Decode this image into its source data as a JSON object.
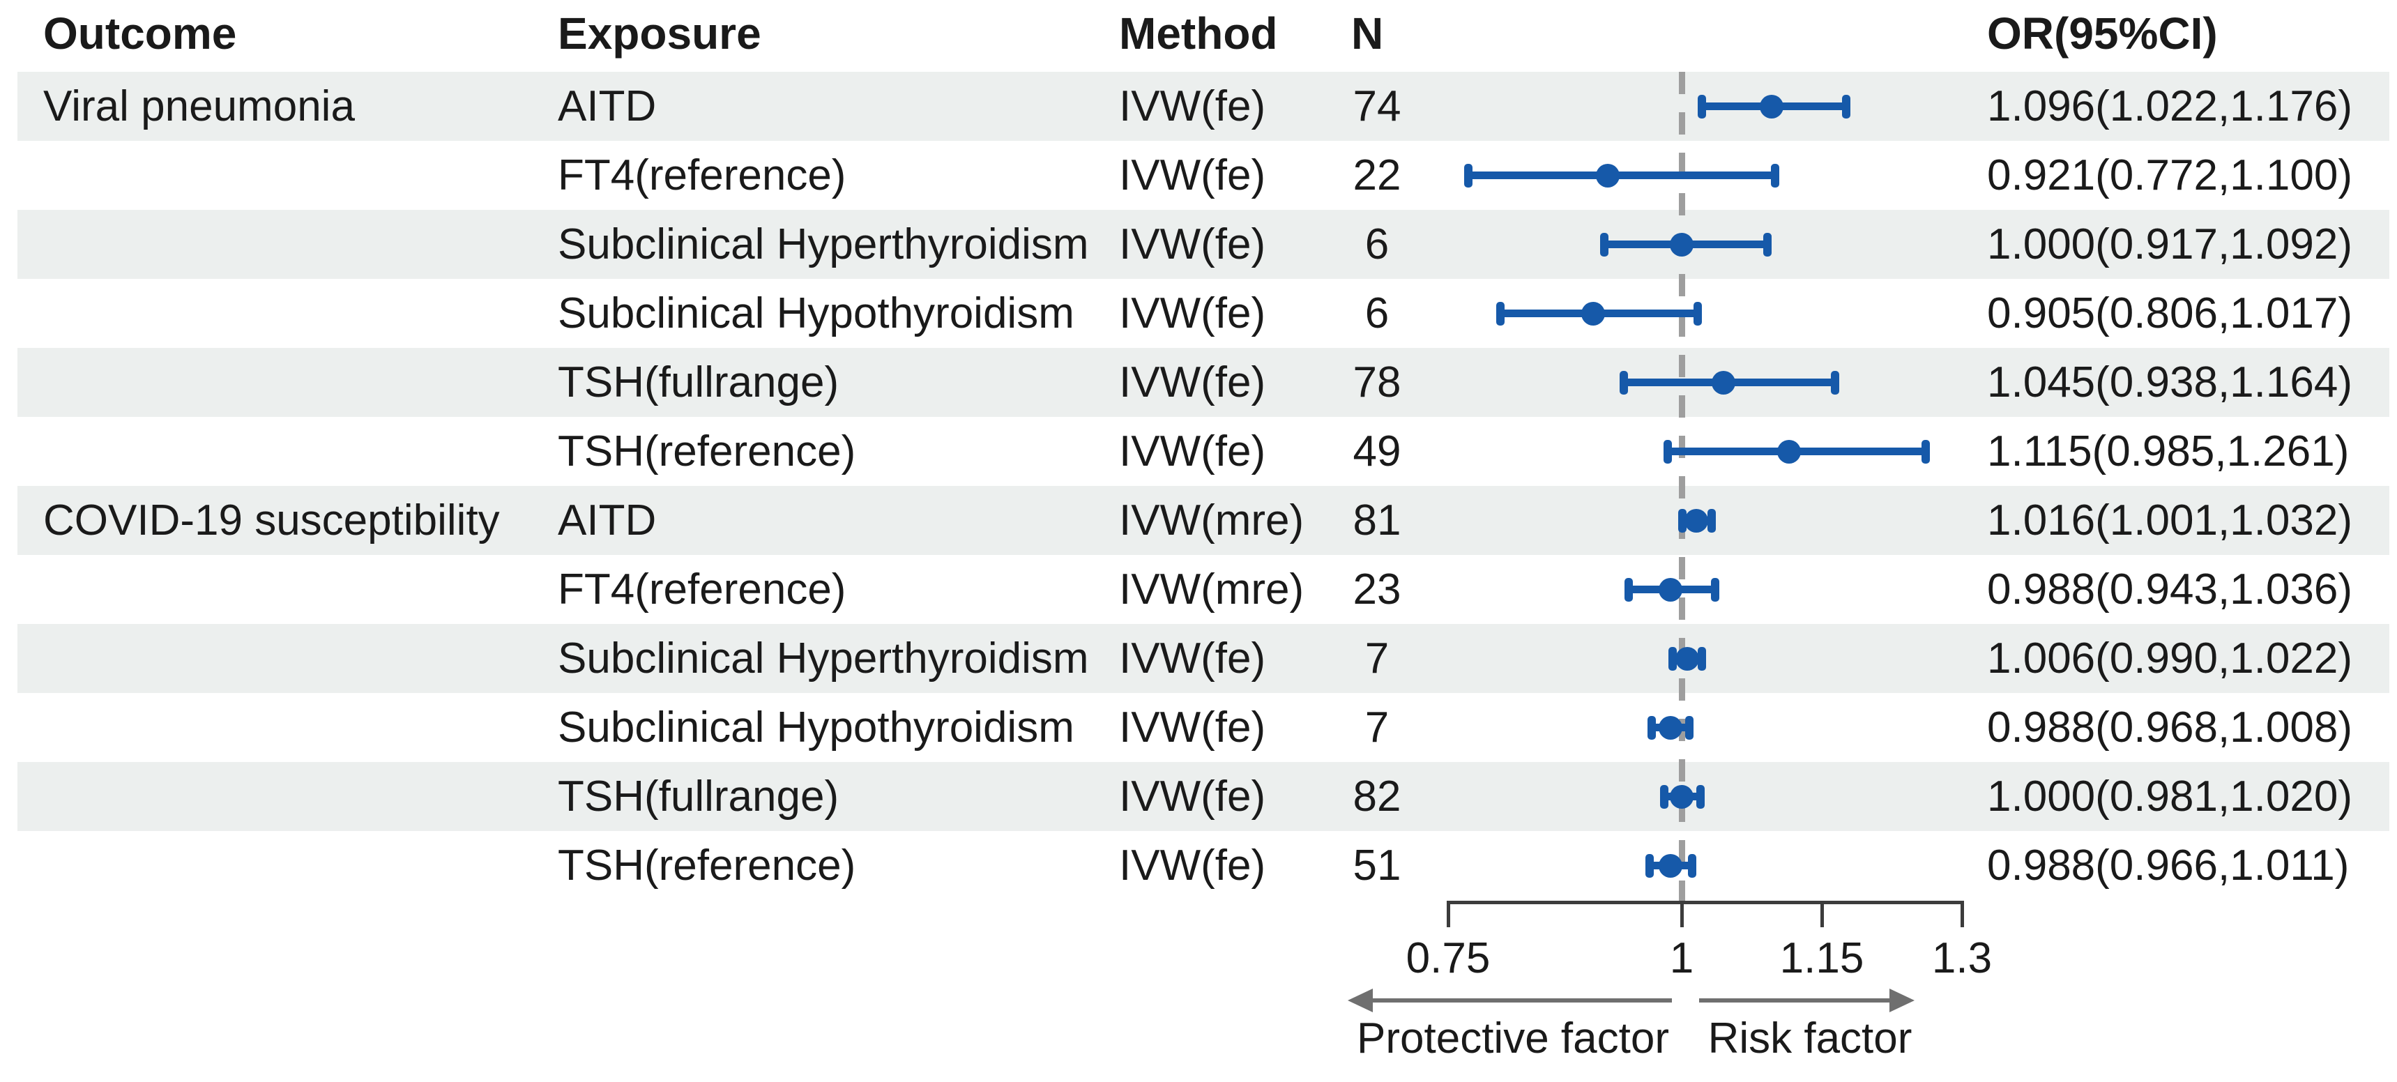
{
  "figure": {
    "columns": {
      "outcome": "Outcome",
      "exposure": "Exposure",
      "method": "Method",
      "n": "N",
      "or_ci": "OR(95%CI)"
    }
  },
  "chart_data": {
    "type": "forest",
    "title": "",
    "xlabel": "",
    "xlim": [
      0.75,
      1.3
    ],
    "reference_value": 1,
    "x_axis": {
      "ticks": [
        0.75,
        1,
        1.15,
        1.3
      ],
      "tick_labels": [
        "0.75",
        "1",
        "1.15",
        "1.3"
      ]
    },
    "arrow_labels": {
      "left": "Protective factor",
      "right": "Risk factor"
    },
    "rows": [
      {
        "outcome": "Viral pneumonia",
        "exposure": "AITD",
        "method": "IVW(fe)",
        "n": "74",
        "or": 1.096,
        "ci_low": 1.022,
        "ci_high": 1.176,
        "label": "1.096(1.022,1.176)"
      },
      {
        "outcome": "",
        "exposure": "FT4(reference)",
        "method": "IVW(fe)",
        "n": "22",
        "or": 0.921,
        "ci_low": 0.772,
        "ci_high": 1.1,
        "label": "0.921(0.772,1.100)"
      },
      {
        "outcome": "",
        "exposure": "Subclinical Hyperthyroidism",
        "method": "IVW(fe)",
        "n": "6",
        "or": 1.0,
        "ci_low": 0.917,
        "ci_high": 1.092,
        "label": "1.000(0.917,1.092)"
      },
      {
        "outcome": "",
        "exposure": "Subclinical Hypothyroidism",
        "method": "IVW(fe)",
        "n": "6",
        "or": 0.905,
        "ci_low": 0.806,
        "ci_high": 1.017,
        "label": "0.905(0.806,1.017)"
      },
      {
        "outcome": "",
        "exposure": "TSH(fullrange)",
        "method": "IVW(fe)",
        "n": "78",
        "or": 1.045,
        "ci_low": 0.938,
        "ci_high": 1.164,
        "label": "1.045(0.938,1.164)"
      },
      {
        "outcome": "",
        "exposure": "TSH(reference)",
        "method": "IVW(fe)",
        "n": "49",
        "or": 1.115,
        "ci_low": 0.985,
        "ci_high": 1.261,
        "label": "1.115(0.985,1.261)"
      },
      {
        "outcome": "COVID-19 susceptibility",
        "exposure": "AITD",
        "method": "IVW(mre)",
        "n": "81",
        "or": 1.016,
        "ci_low": 1.001,
        "ci_high": 1.032,
        "label": "1.016(1.001,1.032)"
      },
      {
        "outcome": "",
        "exposure": "FT4(reference)",
        "method": "IVW(mre)",
        "n": "23",
        "or": 0.988,
        "ci_low": 0.943,
        "ci_high": 1.036,
        "label": "0.988(0.943,1.036)"
      },
      {
        "outcome": "",
        "exposure": "Subclinical Hyperthyroidism",
        "method": "IVW(fe)",
        "n": "7",
        "or": 1.006,
        "ci_low": 0.99,
        "ci_high": 1.022,
        "label": "1.006(0.990,1.022)"
      },
      {
        "outcome": "",
        "exposure": "Subclinical Hypothyroidism",
        "method": "IVW(fe)",
        "n": "7",
        "or": 0.988,
        "ci_low": 0.968,
        "ci_high": 1.008,
        "label": "0.988(0.968,1.008)"
      },
      {
        "outcome": "",
        "exposure": "TSH(fullrange)",
        "method": "IVW(fe)",
        "n": "82",
        "or": 1.0,
        "ci_low": 0.981,
        "ci_high": 1.02,
        "label": "1.000(0.981,1.020)"
      },
      {
        "outcome": "",
        "exposure": "TSH(reference)",
        "method": "IVW(fe)",
        "n": "51",
        "or": 0.988,
        "ci_low": 0.966,
        "ci_high": 1.011,
        "label": "0.988(0.966,1.011)"
      }
    ],
    "colors": {
      "marker_blue": "#1659A9",
      "reference_line_grey": "#9E9E9E",
      "row_shade": "#ECEFEE",
      "axis_line": "#3C3C3C",
      "arrow_grey": "#6F6F6F",
      "text": "#1A1A1A"
    },
    "legend_position": "none",
    "grid": false
  }
}
